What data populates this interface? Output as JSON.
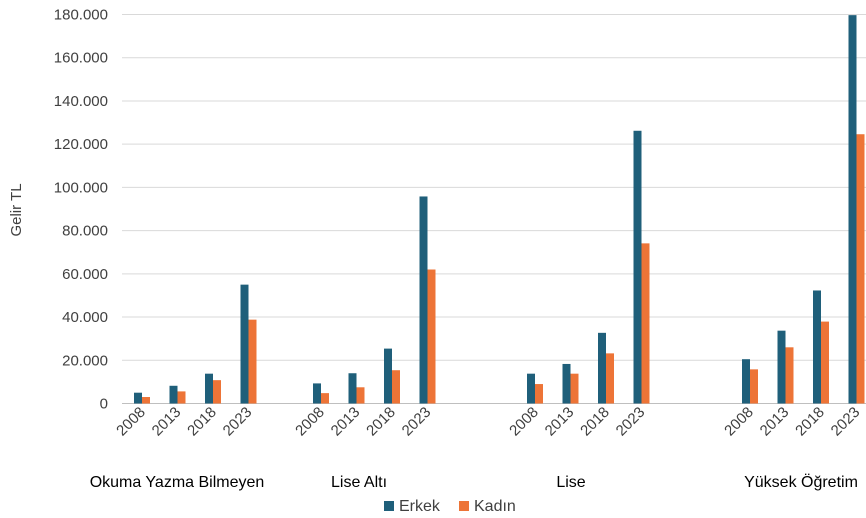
{
  "chart_data": {
    "type": "bar",
    "ylabel": "Gelir TL",
    "ylim": [
      0,
      180000
    ],
    "y_ticks": [
      0,
      20000,
      40000,
      60000,
      80000,
      100000,
      120000,
      140000,
      160000,
      180000
    ],
    "y_tick_labels": [
      "0",
      "20.000",
      "40.000",
      "60.000",
      "80.000",
      "100.000",
      "120.000",
      "140.000",
      "160.000",
      "180.000"
    ],
    "grid": true,
    "legend_position": "bottom",
    "groups": [
      {
        "label": "Okuma Yazma Bilmeyen",
        "years": [
          "2008",
          "2013",
          "2018",
          "2023"
        ],
        "series": [
          {
            "name": "Erkek",
            "values": [
              5000,
              8200,
              13800,
              55000
            ]
          },
          {
            "name": "Kadın",
            "values": [
              3000,
              5600,
              10800,
              38800
            ]
          }
        ]
      },
      {
        "label": "Lise Altı",
        "years": [
          "2008",
          "2013",
          "2018",
          "2023"
        ],
        "series": [
          {
            "name": "Erkek",
            "values": [
              9300,
              14000,
              25400,
              95800
            ]
          },
          {
            "name": "Kadın",
            "values": [
              4800,
              7500,
              15400,
              62000
            ]
          }
        ]
      },
      {
        "label": "Lise",
        "years": [
          "2008",
          "2013",
          "2018",
          "2023"
        ],
        "series": [
          {
            "name": "Erkek",
            "values": [
              13800,
              18300,
              32700,
              126200
            ]
          },
          {
            "name": "Kadın",
            "values": [
              9000,
              13800,
              23200,
              74100
            ]
          }
        ]
      },
      {
        "label": "Yüksek Öğretim",
        "years": [
          "2008",
          "2013",
          "2018",
          "2023"
        ],
        "series": [
          {
            "name": "Erkek",
            "values": [
              20500,
              33700,
              52300,
              179700
            ]
          },
          {
            "name": "Kadın",
            "values": [
              15800,
              26000,
              37900,
              124600
            ]
          }
        ]
      }
    ],
    "legend": [
      {
        "name": "Erkek",
        "color": "#1f5f7a"
      },
      {
        "name": "Kadın",
        "color": "#ed7437"
      }
    ],
    "colors": {
      "Erkek": "#1f5f7a",
      "Kadın": "#ed7437",
      "grid": "#d9d9d9",
      "axis": "#bfbfbf"
    }
  }
}
